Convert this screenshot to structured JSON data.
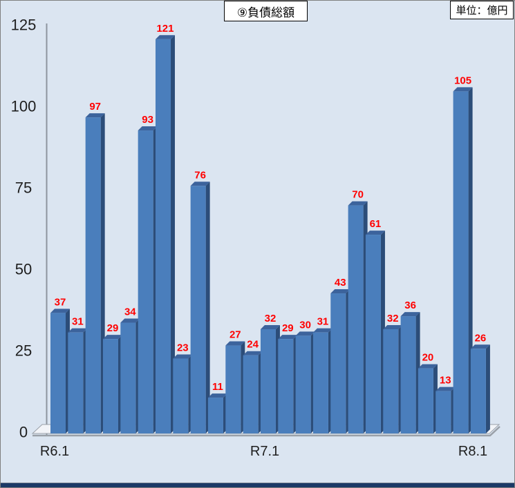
{
  "chart": {
    "title": "⑨負債総額",
    "unit_label": "単位：億円"
  },
  "chart_data": {
    "type": "bar",
    "title": "⑨負債総額",
    "unit": "億円",
    "values": [
      37,
      31,
      97,
      29,
      34,
      93,
      121,
      23,
      76,
      11,
      27,
      24,
      32,
      29,
      30,
      31,
      43,
      70,
      61,
      32,
      36,
      20,
      13,
      105,
      26
    ],
    "value_labels_shown": true,
    "x_tick_labels": [
      "R6.1",
      "R7.1",
      "R8.1"
    ],
    "y_ticks": [
      0,
      25,
      50,
      75,
      100,
      125
    ],
    "ylim": [
      0,
      125
    ],
    "grid": false,
    "legend": "none",
    "style": "3d-column",
    "colors": {
      "bar_face": "#4a7ebc",
      "bar_side": "#2c4d79",
      "bar_top": "#3c639c",
      "value_label": "#ff0000",
      "background": "#dbe5f1",
      "axis_line": "#8e959e",
      "axis_text": "#1e1e1e",
      "floor_fill": "#f2f4f8",
      "floor_edge": "#9aa0a8",
      "window_edge": "#1b3966"
    }
  }
}
